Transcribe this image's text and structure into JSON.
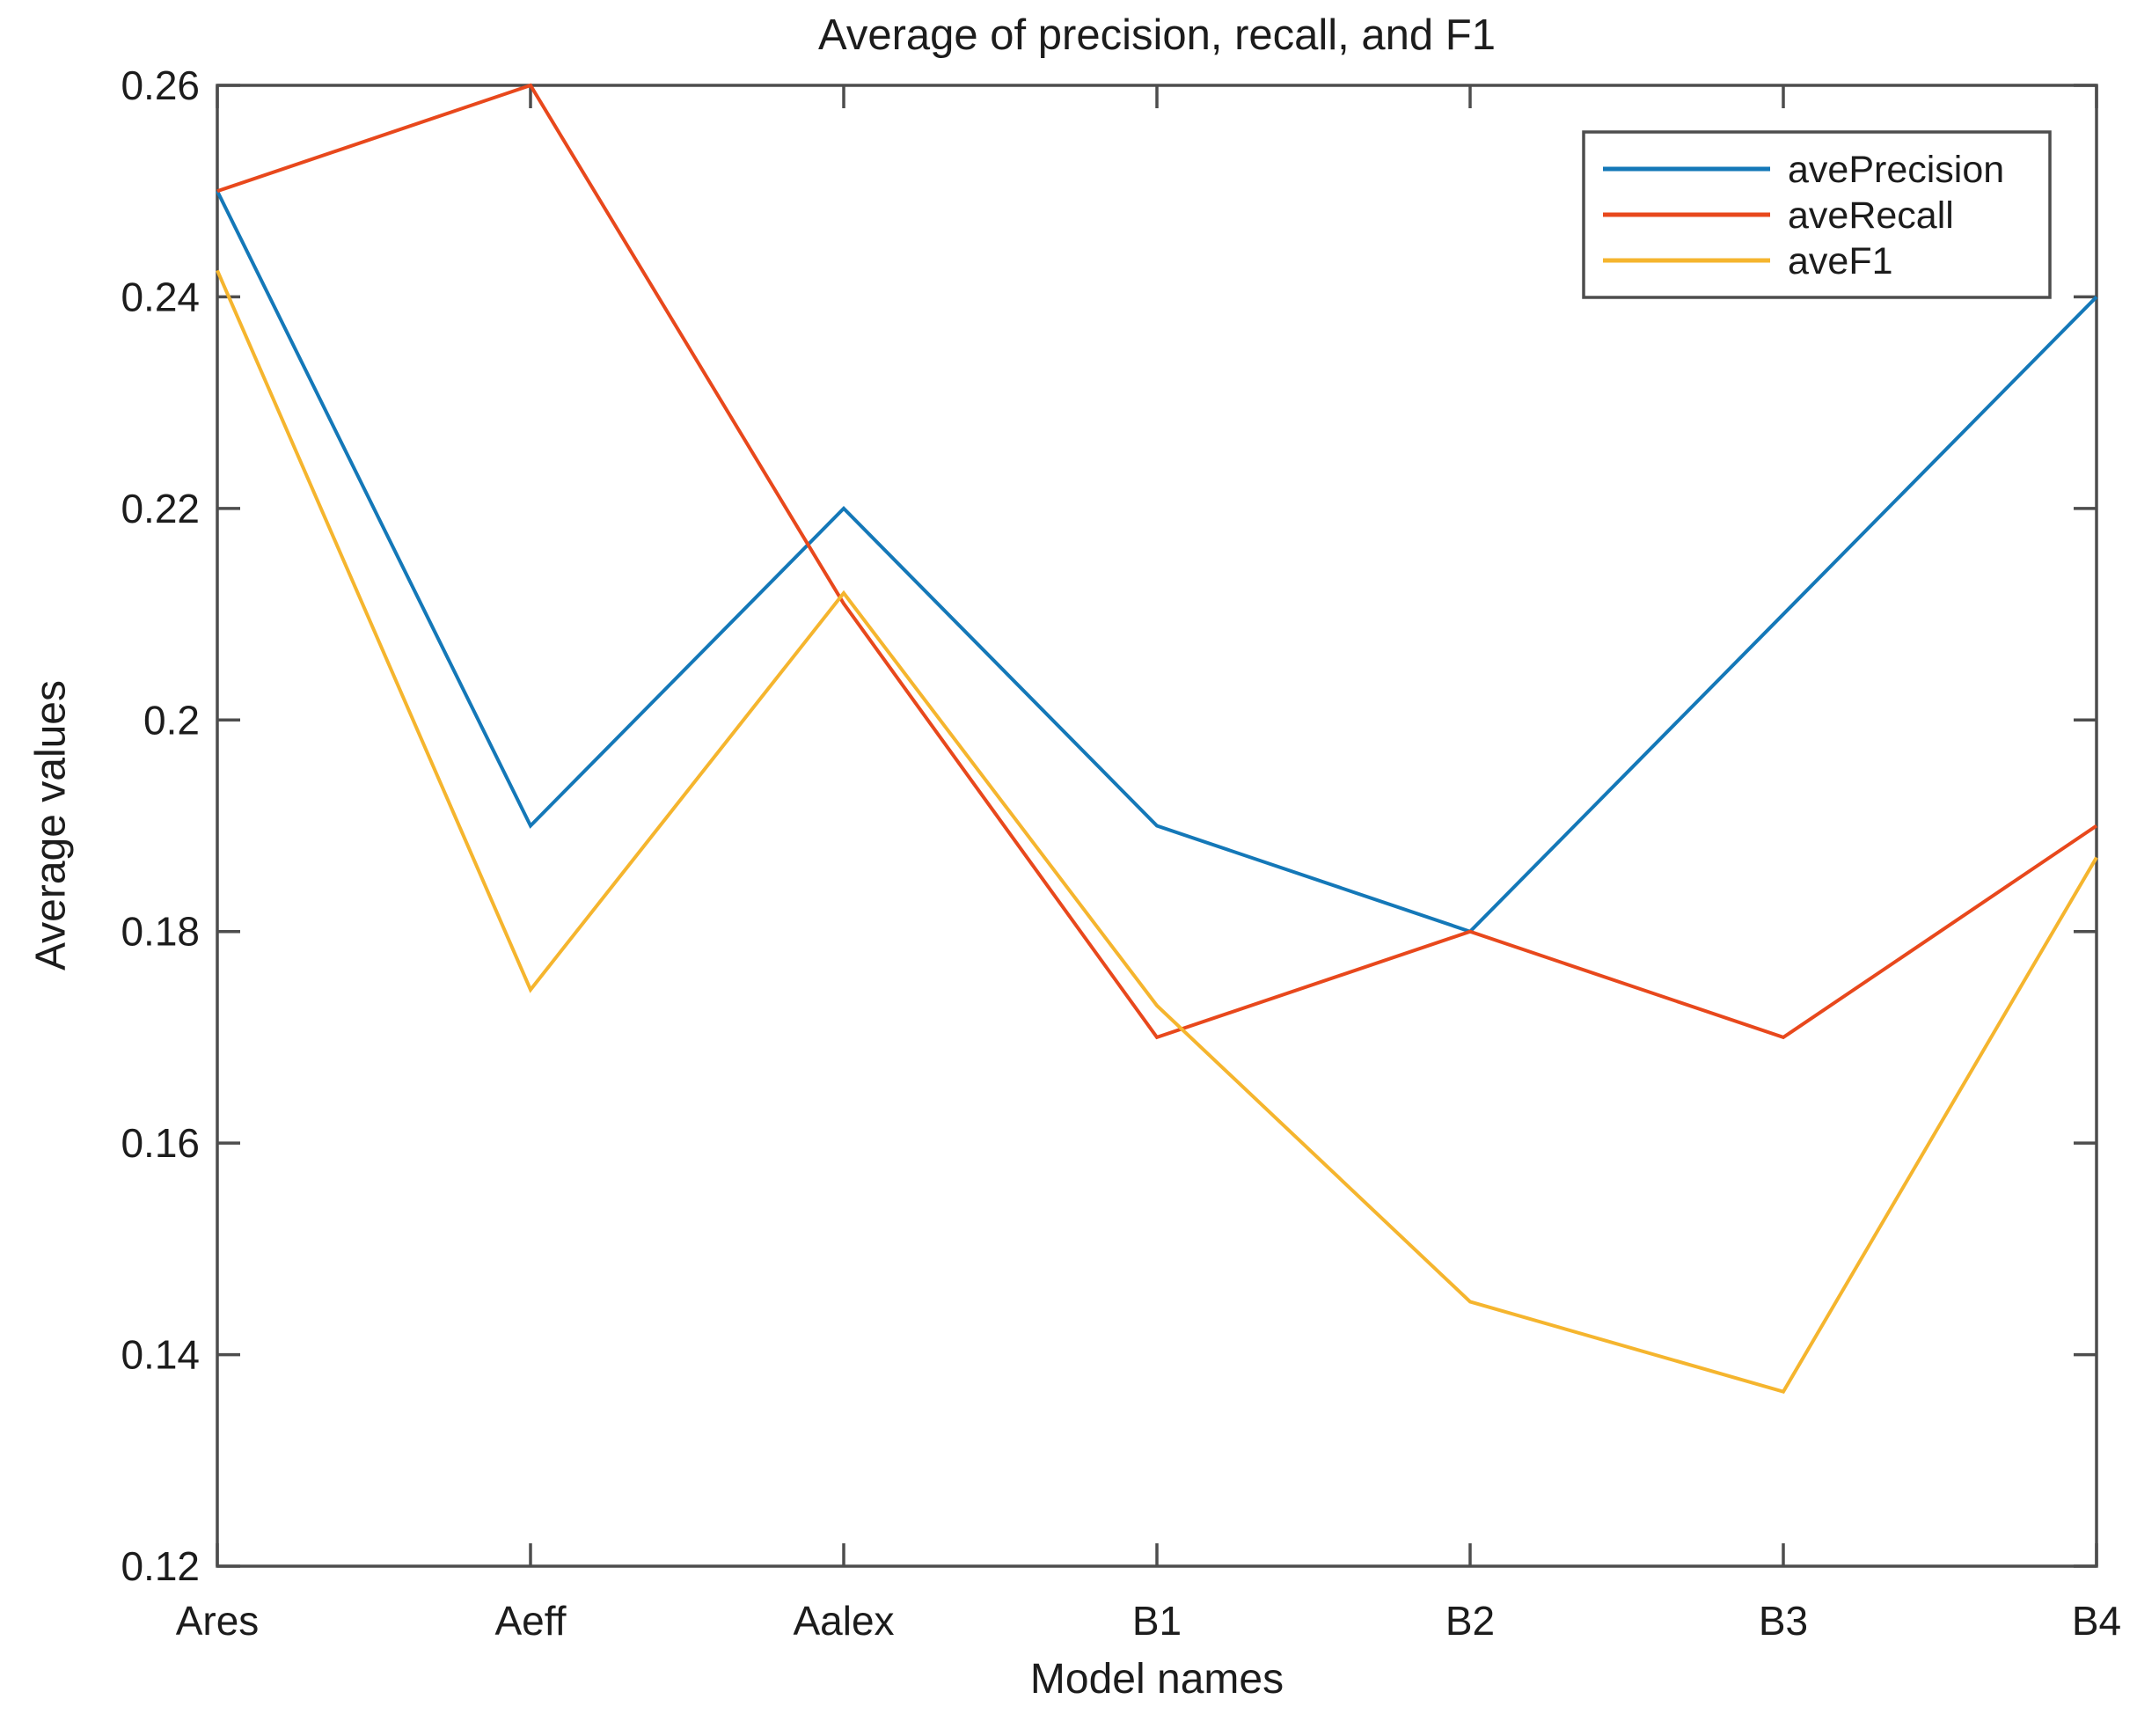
{
  "chart_data": {
    "type": "line",
    "title": "Average of precision, recall, and F1",
    "xlabel": "Model names",
    "ylabel": "Average values",
    "categories": [
      "Ares",
      "Aeff",
      "Aalex",
      "B1",
      "B2",
      "B3",
      "B4"
    ],
    "ylim": [
      0.12,
      0.26
    ],
    "yticks": [
      0.12,
      0.14,
      0.16,
      0.18,
      0.2,
      0.22,
      0.24,
      0.26
    ],
    "ytick_labels": [
      "0.12",
      "0.14",
      "0.16",
      "0.18",
      "0.2",
      "0.22",
      "0.24",
      "0.26"
    ],
    "grid": false,
    "legend_position": "top-right",
    "axis_color": "#4d4d4d",
    "text_color": "#1c1c1c",
    "series": [
      {
        "name": "avePrecision",
        "color": "#1478B8",
        "values": [
          0.25,
          0.19,
          0.22,
          0.19,
          0.18,
          0.21,
          0.24
        ]
      },
      {
        "name": "aveRecall",
        "color": "#E8481C",
        "values": [
          0.25,
          0.26,
          0.211,
          0.17,
          0.18,
          0.17,
          0.19
        ]
      },
      {
        "name": "aveF1",
        "color": "#F5B52E",
        "values": [
          0.2425,
          0.1745,
          0.212,
          0.173,
          0.145,
          0.1365,
          0.187
        ]
      }
    ]
  }
}
